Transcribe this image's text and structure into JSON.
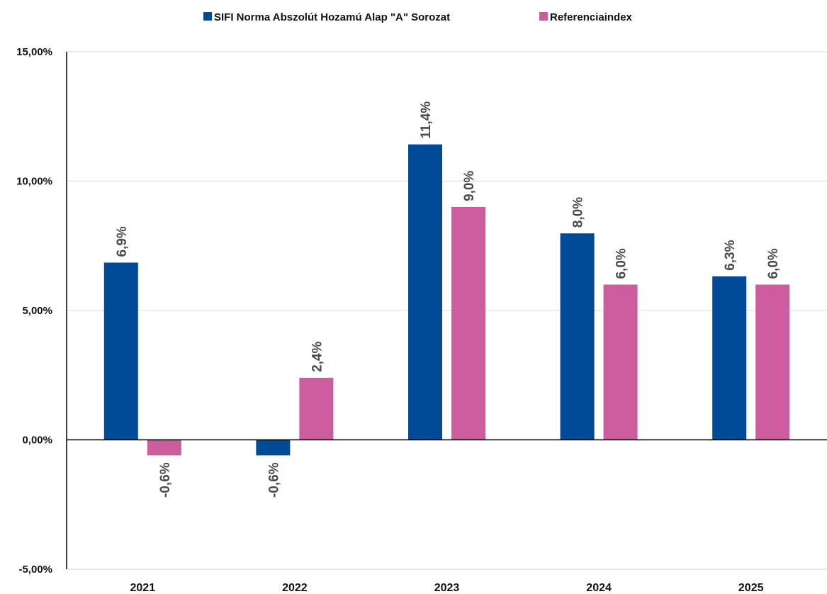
{
  "chart_data": {
    "type": "bar",
    "categories": [
      "2021",
      "2022",
      "2023",
      "2024",
      "2025"
    ],
    "series": [
      {
        "name": "SIFI Norma Abszolút Hozamú Alap \"A\" Sorozat",
        "color": "#004a98",
        "values": [
          6.85,
          -0.6,
          11.42,
          7.98,
          6.32
        ],
        "labels": [
          "6,9%",
          "-0,6%",
          "11,4%",
          "8,0%",
          "6,3%"
        ]
      },
      {
        "name": "Referenciaindex",
        "color": "#cd5c9e",
        "values": [
          -0.6,
          2.4,
          9.0,
          6.0,
          6.0
        ],
        "labels": [
          "-0,6%",
          "2,4%",
          "9,0%",
          "6,0%",
          "6,0%"
        ]
      }
    ],
    "ylim": [
      -5,
      15
    ],
    "yticks": [
      -5,
      0,
      5,
      10,
      15
    ],
    "ytick_labels": [
      "-5,00%",
      "0,00%",
      "5,00%",
      "10,00%",
      "15,00%"
    ],
    "grid": true,
    "legend_position": "top-center",
    "title": "",
    "xlabel": "",
    "ylabel": ""
  }
}
